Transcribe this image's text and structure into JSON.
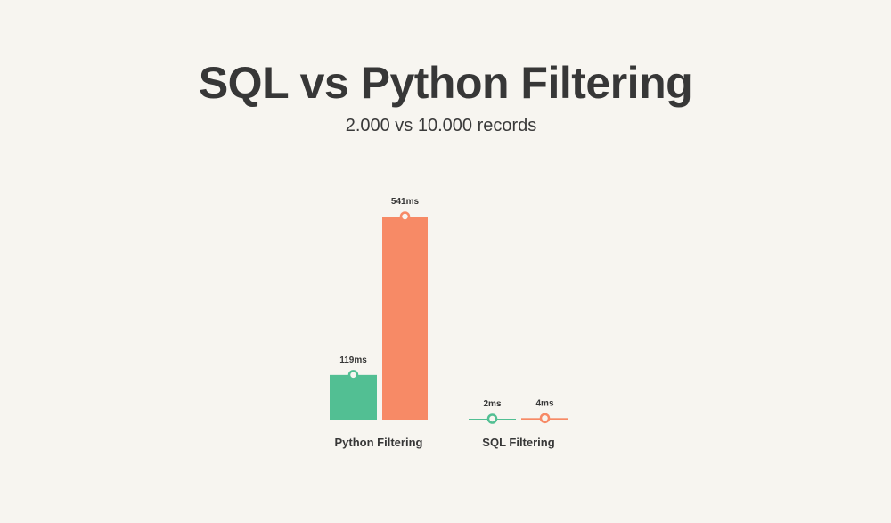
{
  "title": "SQL vs Python Filtering",
  "subtitle": "2.000 vs 10.000 records",
  "colors": {
    "background": "#f7f5f0",
    "series_2000": "#52bf93",
    "series_10000": "#f78a66",
    "text": "#373737"
  },
  "chart_data": {
    "type": "bar",
    "categories": [
      "Python Filtering",
      "SQL Filtering"
    ],
    "series": [
      {
        "values": [
          119,
          2
        ],
        "labels": [
          "119ms",
          "2ms"
        ],
        "color": "#52bf93"
      },
      {
        "values": [
          541,
          4
        ],
        "labels": [
          "541ms",
          "4ms"
        ],
        "color": "#f78a66"
      }
    ],
    "unit": "ms",
    "ylim": [
      0,
      541
    ],
    "grid": false,
    "legend": "none"
  }
}
